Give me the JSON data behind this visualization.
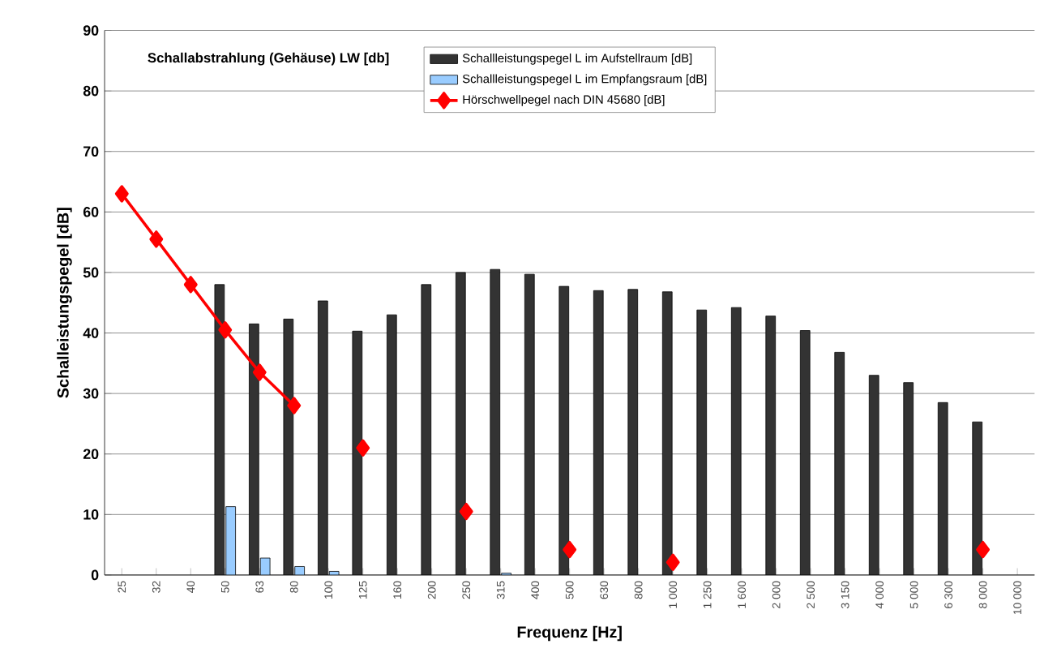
{
  "chart_data": {
    "type": "bar",
    "title": "Schallabstrahlung (Gehäuse) LW [db]",
    "xlabel": "Frequenz [Hz]",
    "ylabel": "Schalleistungspegel [dB]",
    "categories": [
      "25",
      "32",
      "40",
      "50",
      "63",
      "80",
      "100",
      "125",
      "160",
      "200",
      "250",
      "315",
      "400",
      "500",
      "630",
      "800",
      "1 000",
      "1 250",
      "1 600",
      "2 000",
      "2 500",
      "3 150",
      "4 000",
      "5 000",
      "6 300",
      "8 000",
      "10 000"
    ],
    "series": [
      {
        "name": "Schallleistungspegel  L im Aufstellraum  [dB]",
        "color": "#333333",
        "values": [
          null,
          null,
          null,
          48,
          41.5,
          42.3,
          45.3,
          40.3,
          43,
          48,
          50,
          50.5,
          49.7,
          47.7,
          47,
          47.2,
          46.8,
          43.8,
          44.2,
          42.8,
          40.4,
          36.8,
          33,
          31.8,
          28.5,
          25.3,
          null
        ]
      },
      {
        "name": "Schallleistungspegel  L im Empfangsraum  [dB]",
        "color": "#99ccff",
        "values": [
          null,
          null,
          null,
          11.3,
          2.8,
          1.4,
          0.6,
          null,
          null,
          null,
          null,
          0.3,
          null,
          null,
          null,
          null,
          null,
          null,
          null,
          null,
          null,
          null,
          null,
          null,
          null,
          null,
          null
        ]
      },
      {
        "name": "Hörschwellpegel nach      DIN 45680 [dB]",
        "type": "line",
        "color": "#ff0000",
        "marker": "diamond",
        "line_style": "solid",
        "values": [
          63,
          55.5,
          48,
          40.5,
          33.5,
          28,
          null,
          21,
          null,
          null,
          10.5,
          null,
          null,
          4.2,
          null,
          null,
          2.1,
          null,
          null,
          null,
          null,
          null,
          null,
          null,
          null,
          4.2,
          null
        ]
      }
    ],
    "ylim": [
      0,
      90
    ],
    "yticks": [
      0,
      10,
      20,
      30,
      40,
      50,
      60,
      70,
      80,
      90
    ],
    "grid": "y",
    "legend": "top"
  }
}
